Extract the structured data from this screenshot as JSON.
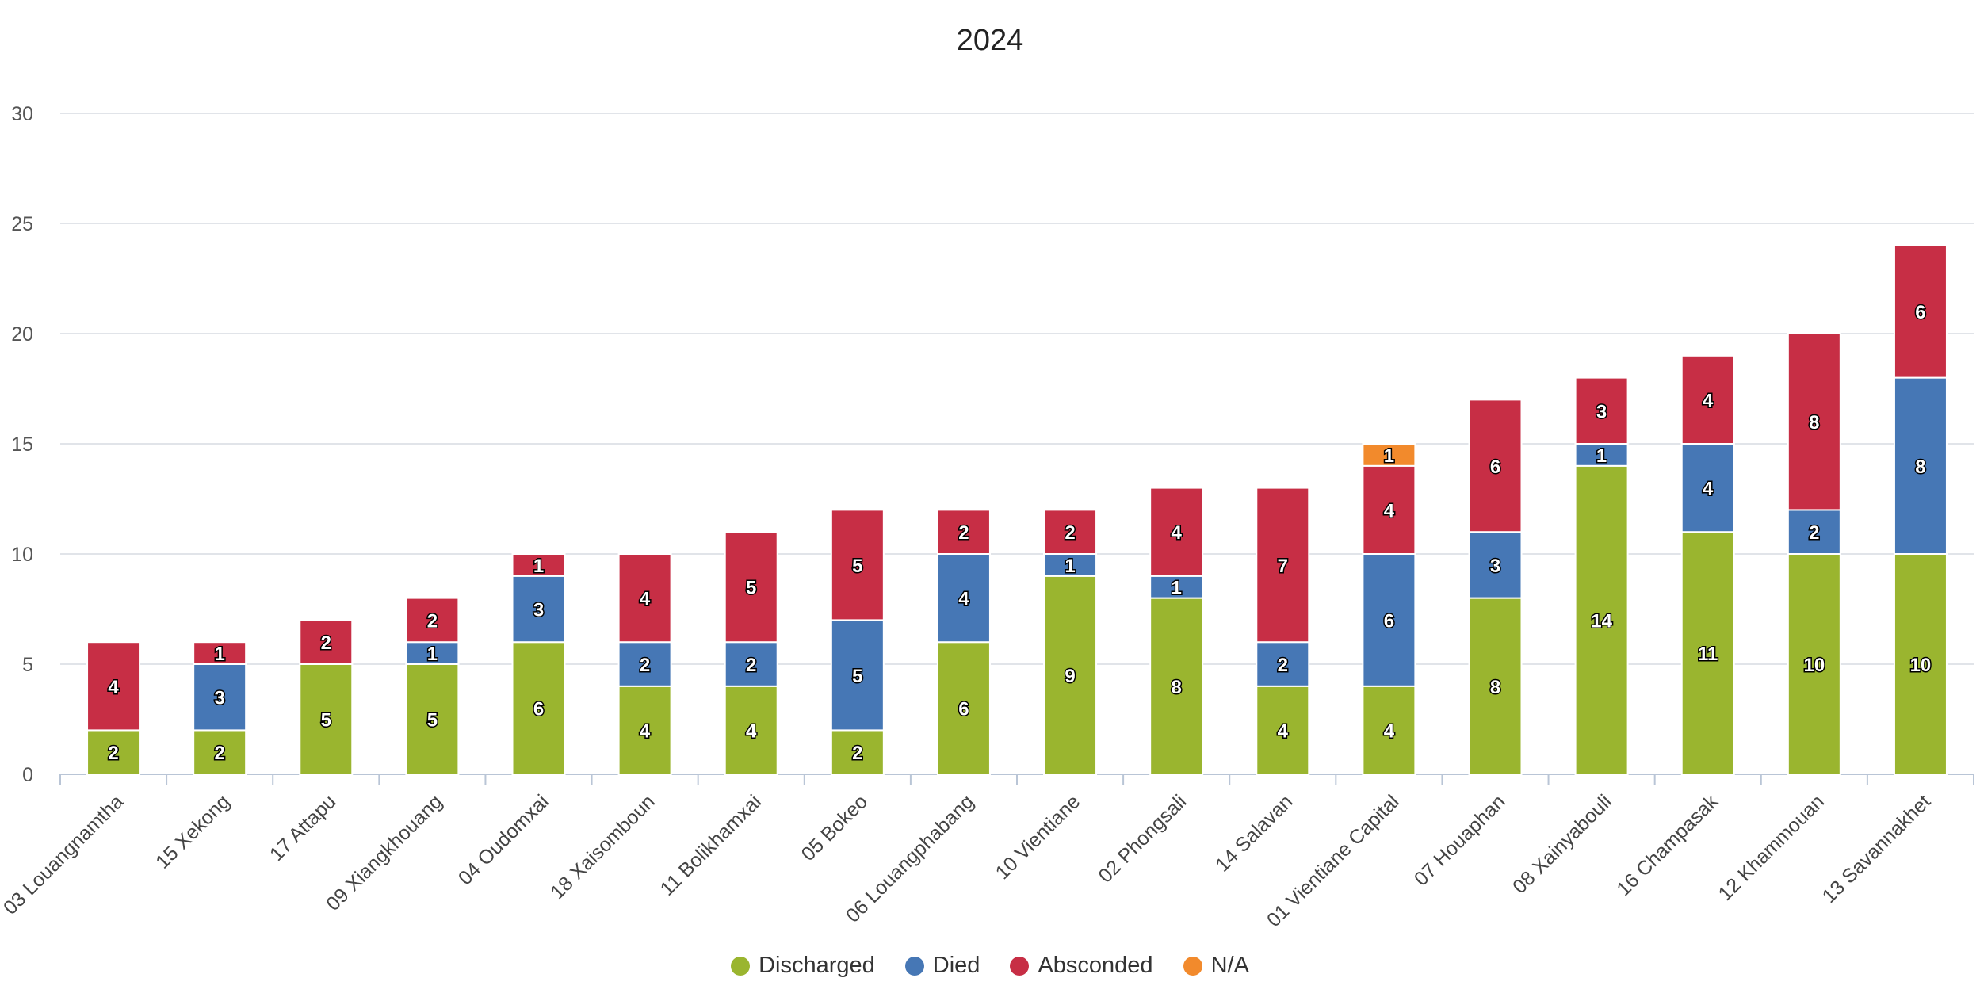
{
  "chart_data": {
    "type": "bar",
    "stacked": true,
    "title": "2024",
    "xlabel": "",
    "ylabel": "",
    "ylim": [
      0,
      30
    ],
    "yticks": [
      0,
      5,
      10,
      15,
      20,
      25,
      30
    ],
    "grid": true,
    "legend_position": "bottom",
    "categories": [
      "03 Louangnamtha",
      "15 Xekong",
      "17 Attapu",
      "09 Xiangkhouang",
      "04 Oudomxai",
      "18 Xaisomboun",
      "11 Bolikhamxai",
      "05 Bokeo",
      "06 Louangphabang",
      "10 Vientiane",
      "02 Phongsali",
      "14 Salavan",
      "01 Vientiane Capital",
      "07 Houaphan",
      "08 Xainyabouli",
      "16 Champasak",
      "12 Khammouan",
      "13 Savannakhet"
    ],
    "series": [
      {
        "name": "Discharged",
        "color": "#9ab52f",
        "values": [
          2,
          2,
          5,
          5,
          6,
          4,
          4,
          2,
          6,
          9,
          8,
          4,
          4,
          8,
          14,
          11,
          10,
          10
        ]
      },
      {
        "name": "Died",
        "color": "#4677b5",
        "values": [
          0,
          3,
          0,
          1,
          3,
          2,
          2,
          5,
          4,
          1,
          1,
          2,
          6,
          3,
          1,
          4,
          2,
          8
        ]
      },
      {
        "name": "Absconded",
        "color": "#c72e45",
        "values": [
          4,
          1,
          2,
          2,
          1,
          4,
          5,
          5,
          2,
          2,
          4,
          7,
          4,
          6,
          3,
          4,
          8,
          6
        ]
      },
      {
        "name": "N/A",
        "color": "#f28a2c",
        "values": [
          0,
          0,
          0,
          0,
          0,
          0,
          0,
          0,
          0,
          0,
          0,
          0,
          1,
          0,
          0,
          0,
          0,
          0
        ]
      }
    ]
  }
}
